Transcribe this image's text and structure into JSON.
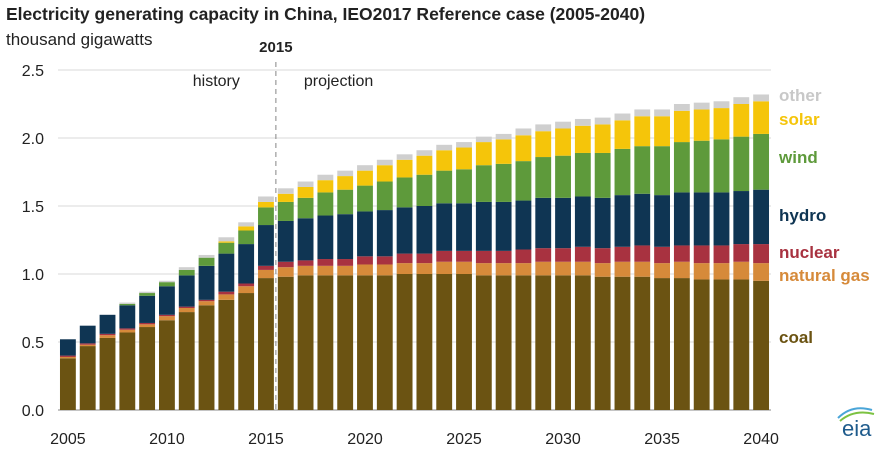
{
  "chart_data": {
    "type": "bar",
    "stacked": true,
    "title": "Electricity generating capacity in China, IEO2017 Reference case (2005-2040)",
    "ylabel": "thousand gigawatts",
    "xlabel": "",
    "ylim": [
      0,
      2.5
    ],
    "yticks": [
      "0.0",
      "0.5",
      "1.0",
      "1.5",
      "2.0",
      "2.5"
    ],
    "xticks": [
      "2005",
      "2010",
      "2015",
      "2020",
      "2025",
      "2030",
      "2035",
      "2040"
    ],
    "marker": {
      "label": "2015",
      "history_label": "history",
      "projection_label": "projection"
    },
    "categories": [
      2005,
      2006,
      2007,
      2008,
      2009,
      2010,
      2011,
      2012,
      2013,
      2014,
      2015,
      2016,
      2017,
      2018,
      2019,
      2020,
      2021,
      2022,
      2023,
      2024,
      2025,
      2026,
      2027,
      2028,
      2029,
      2030,
      2031,
      2032,
      2033,
      2034,
      2035,
      2036,
      2037,
      2038,
      2039,
      2040
    ],
    "series": [
      {
        "name": "coal",
        "color": "#6b5312",
        "values": [
          0.38,
          0.47,
          0.53,
          0.57,
          0.61,
          0.66,
          0.72,
          0.77,
          0.81,
          0.86,
          0.97,
          0.98,
          0.99,
          0.99,
          0.99,
          0.99,
          0.99,
          1.0,
          1.0,
          1.0,
          1.0,
          0.99,
          0.99,
          0.99,
          0.99,
          0.99,
          0.99,
          0.98,
          0.98,
          0.98,
          0.97,
          0.97,
          0.96,
          0.96,
          0.96,
          0.95
        ]
      },
      {
        "name": "natural gas",
        "color": "#d68a3a",
        "values": [
          0.01,
          0.01,
          0.02,
          0.02,
          0.02,
          0.03,
          0.03,
          0.03,
          0.04,
          0.05,
          0.06,
          0.07,
          0.07,
          0.07,
          0.07,
          0.08,
          0.08,
          0.08,
          0.08,
          0.09,
          0.09,
          0.09,
          0.09,
          0.09,
          0.1,
          0.1,
          0.1,
          0.1,
          0.11,
          0.11,
          0.11,
          0.12,
          0.12,
          0.12,
          0.13,
          0.13
        ]
      },
      {
        "name": "nuclear",
        "color": "#a83240",
        "values": [
          0.01,
          0.01,
          0.01,
          0.01,
          0.01,
          0.01,
          0.01,
          0.01,
          0.02,
          0.02,
          0.03,
          0.04,
          0.04,
          0.05,
          0.05,
          0.06,
          0.06,
          0.07,
          0.07,
          0.08,
          0.08,
          0.09,
          0.09,
          0.1,
          0.1,
          0.1,
          0.11,
          0.11,
          0.11,
          0.12,
          0.12,
          0.12,
          0.13,
          0.13,
          0.13,
          0.14
        ]
      },
      {
        "name": "hydro",
        "color": "#0f3553",
        "values": [
          0.12,
          0.13,
          0.14,
          0.17,
          0.2,
          0.21,
          0.23,
          0.25,
          0.28,
          0.29,
          0.3,
          0.3,
          0.31,
          0.32,
          0.33,
          0.33,
          0.34,
          0.34,
          0.35,
          0.35,
          0.35,
          0.36,
          0.36,
          0.36,
          0.37,
          0.37,
          0.37,
          0.37,
          0.38,
          0.38,
          0.38,
          0.39,
          0.39,
          0.39,
          0.39,
          0.4
        ]
      },
      {
        "name": "wind",
        "color": "#5e9a3b",
        "values": [
          0.0,
          0.0,
          0.0,
          0.01,
          0.02,
          0.03,
          0.04,
          0.06,
          0.08,
          0.1,
          0.13,
          0.14,
          0.15,
          0.17,
          0.18,
          0.19,
          0.21,
          0.22,
          0.23,
          0.24,
          0.25,
          0.27,
          0.28,
          0.29,
          0.3,
          0.31,
          0.32,
          0.33,
          0.34,
          0.35,
          0.36,
          0.37,
          0.38,
          0.39,
          0.4,
          0.41
        ]
      },
      {
        "name": "solar",
        "color": "#f5c50a",
        "values": [
          0.0,
          0.0,
          0.0,
          0.0,
          0.0,
          0.0,
          0.0,
          0.0,
          0.01,
          0.03,
          0.04,
          0.06,
          0.08,
          0.09,
          0.1,
          0.11,
          0.12,
          0.13,
          0.14,
          0.15,
          0.16,
          0.17,
          0.18,
          0.19,
          0.19,
          0.2,
          0.2,
          0.21,
          0.21,
          0.22,
          0.22,
          0.23,
          0.23,
          0.23,
          0.24,
          0.24
        ]
      },
      {
        "name": "other",
        "color": "#cfcfcf",
        "values": [
          0.0,
          0.0,
          0.0,
          0.01,
          0.01,
          0.01,
          0.02,
          0.02,
          0.03,
          0.03,
          0.04,
          0.04,
          0.04,
          0.04,
          0.04,
          0.04,
          0.04,
          0.04,
          0.04,
          0.04,
          0.04,
          0.04,
          0.04,
          0.05,
          0.05,
          0.05,
          0.05,
          0.05,
          0.05,
          0.05,
          0.05,
          0.05,
          0.05,
          0.05,
          0.05,
          0.05
        ]
      }
    ],
    "legend": [
      {
        "label": "other",
        "color": "#c8c8c8"
      },
      {
        "label": "solar",
        "color": "#f5c50a"
      },
      {
        "label": "wind",
        "color": "#5e9a3b"
      },
      {
        "label": "hydro",
        "color": "#0f3553"
      },
      {
        "label": "nuclear",
        "color": "#a83240"
      },
      {
        "label": "natural gas",
        "color": "#d68a3a"
      },
      {
        "label": "coal",
        "color": "#6b5312"
      }
    ]
  },
  "logo_text": "eia"
}
